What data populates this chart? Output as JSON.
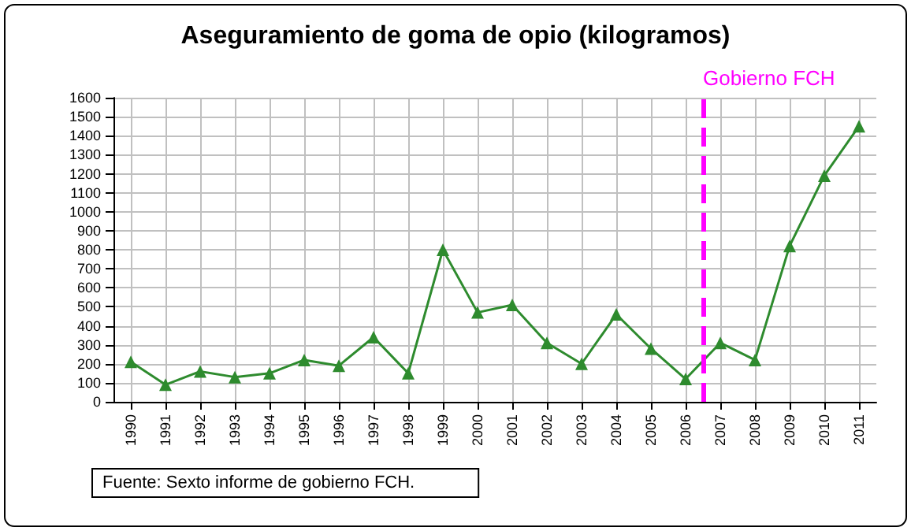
{
  "chart_data": {
    "type": "line",
    "title": "Aseguramiento de goma de opio (kilogramos)",
    "x": [
      1990,
      1991,
      1992,
      1993,
      1994,
      1995,
      1996,
      1997,
      1998,
      1999,
      2000,
      2001,
      2002,
      2003,
      2004,
      2005,
      2006,
      2007,
      2008,
      2009,
      2010,
      2011
    ],
    "series": [
      {
        "color": "#2e8b2e",
        "values": [
          210,
          90,
          160,
          130,
          150,
          220,
          190,
          340,
          150,
          800,
          470,
          510,
          310,
          200,
          460,
          280,
          120,
          310,
          220,
          820,
          1190,
          1450
        ]
      }
    ],
    "xlim": [
      1989.5,
      2011.5
    ],
    "xticks": [
      1990,
      1991,
      1992,
      1993,
      1994,
      1995,
      1996,
      1997,
      1998,
      1999,
      2000,
      2001,
      2002,
      2003,
      2004,
      2005,
      2006,
      2007,
      2008,
      2009,
      2010,
      2011
    ],
    "ylim": [
      0,
      1600
    ],
    "yticks": [
      0,
      100,
      200,
      300,
      400,
      500,
      600,
      700,
      800,
      900,
      1000,
      1100,
      1200,
      1300,
      1400,
      1500,
      1600
    ],
    "grid": true,
    "marker": "triangle",
    "line_style": "solid",
    "ref_lines": [
      {
        "axis": "x",
        "value": 2006.5,
        "label": "Gobierno FCH",
        "color": "#ff00ff",
        "line_style": "dashed"
      }
    ],
    "annotations": [
      "Fuente: Sexto informe de gobierno FCH."
    ]
  }
}
